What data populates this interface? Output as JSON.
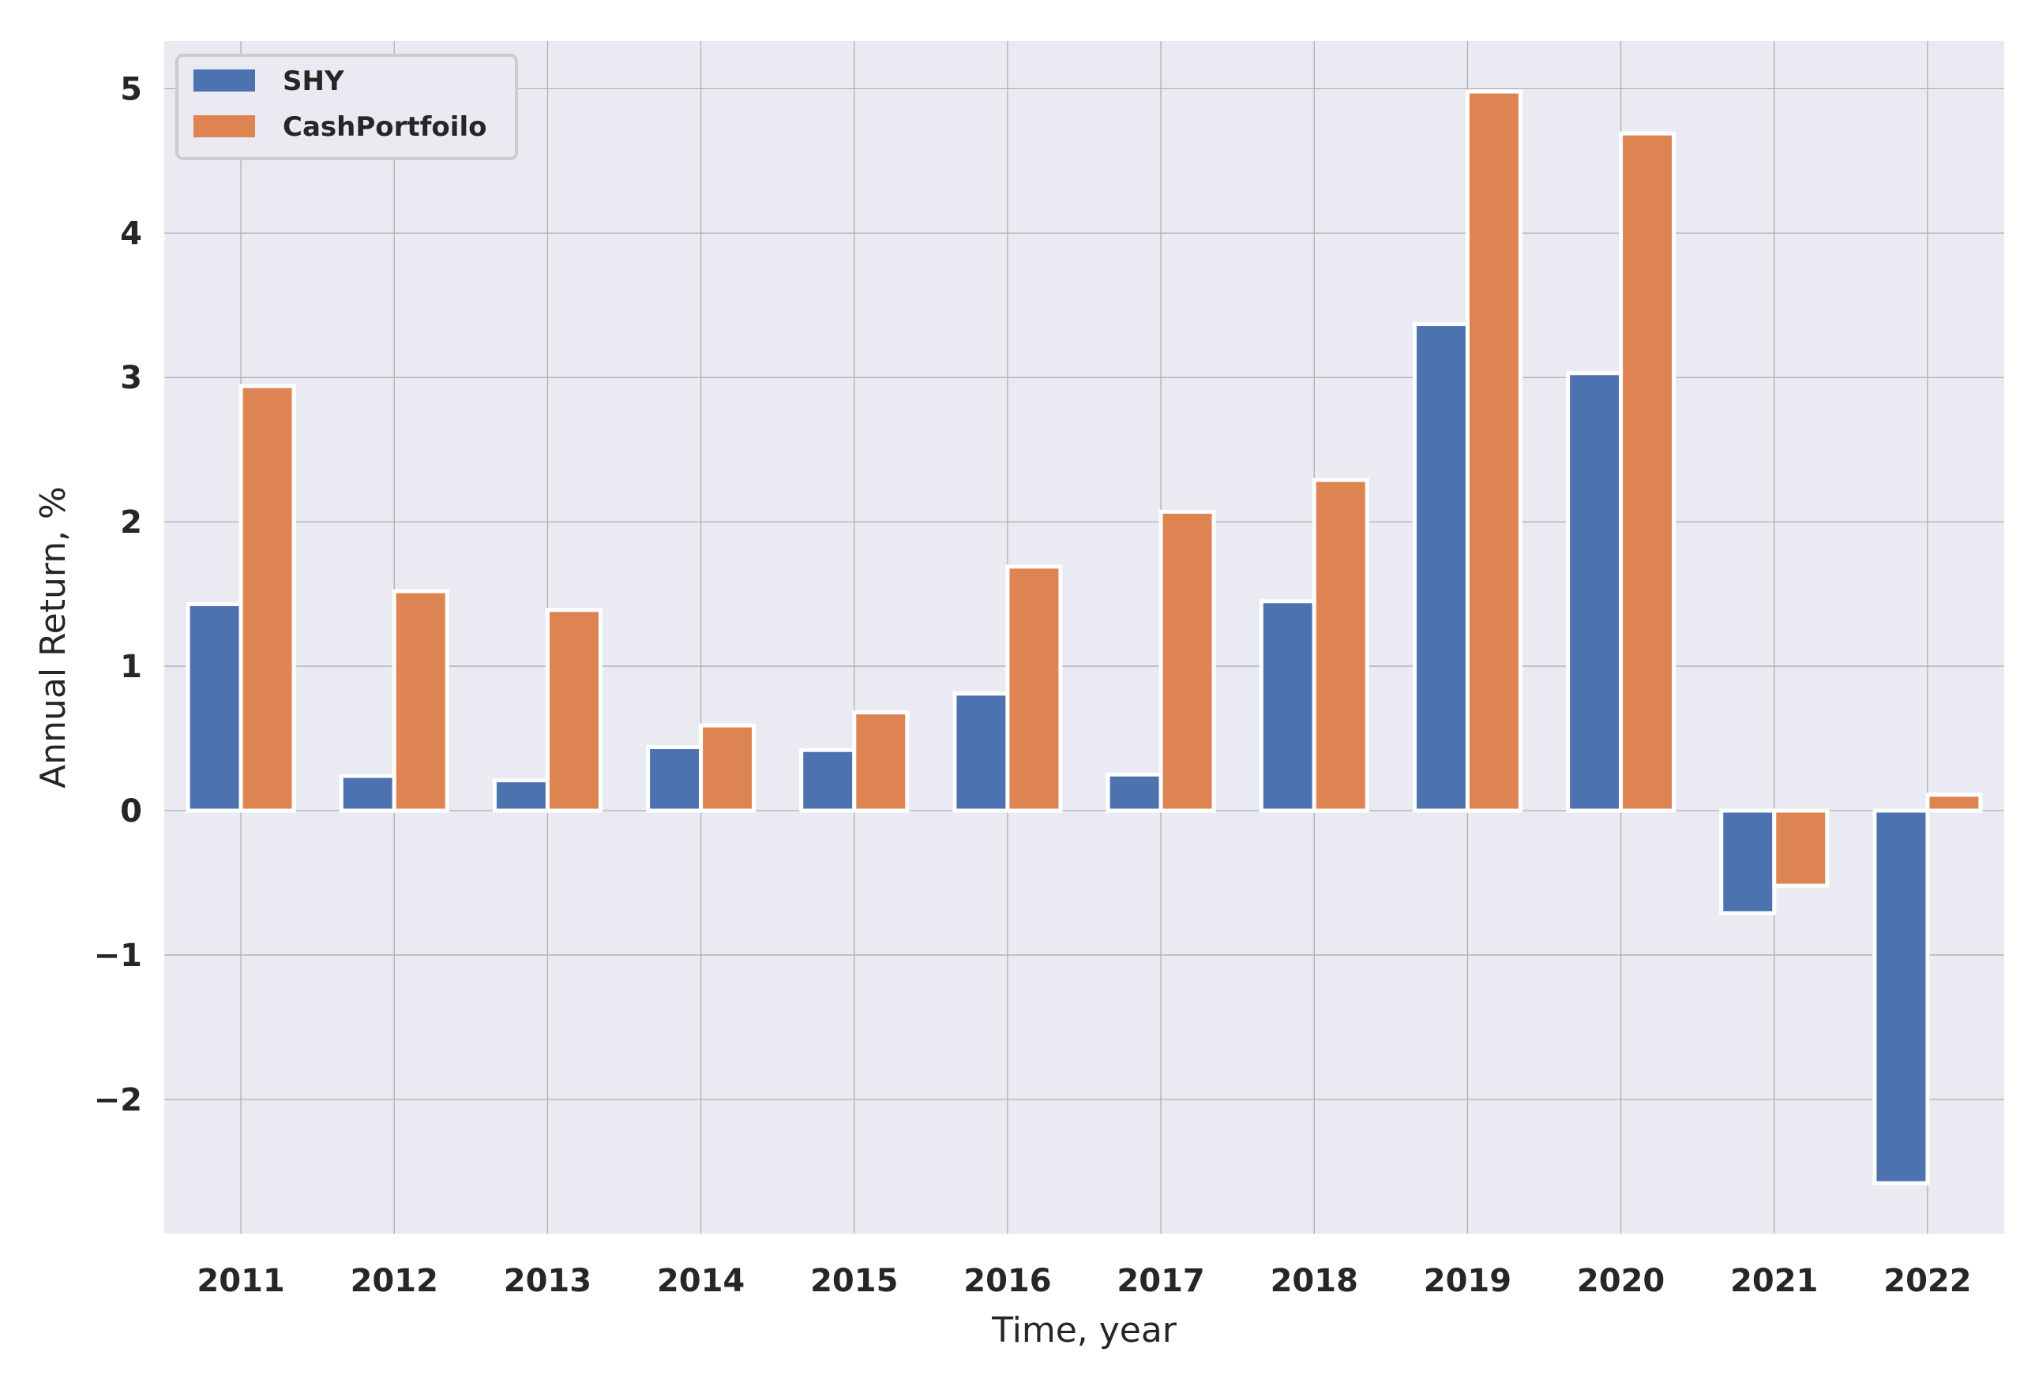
{
  "chart_data": {
    "type": "bar",
    "categories": [
      "2011",
      "2012",
      "2013",
      "2014",
      "2015",
      "2016",
      "2017",
      "2018",
      "2019",
      "2020",
      "2021",
      "2022"
    ],
    "series": [
      {
        "name": "SHY",
        "color": "#4c72b0",
        "values": [
          1.43,
          0.24,
          0.21,
          0.44,
          0.42,
          0.81,
          0.25,
          1.45,
          3.37,
          3.03,
          -0.71,
          -2.58
        ]
      },
      {
        "name": "CashPortfoilo",
        "color": "#dd8452",
        "values": [
          2.94,
          1.52,
          1.39,
          0.59,
          0.68,
          1.69,
          2.07,
          2.29,
          4.98,
          4.69,
          -0.52,
          0.11
        ]
      }
    ],
    "xlabel": "Time, year",
    "ylabel": "Annual Return, %",
    "ylim": [
      -2.93,
      5.33
    ],
    "yticks": [
      -2,
      -1,
      0,
      1,
      2,
      3,
      4,
      5
    ],
    "ytick_labels": [
      "−2",
      "−1",
      "0",
      "1",
      "2",
      "3",
      "4",
      "5"
    ],
    "grid": true,
    "legend_position": "upper-left",
    "background_color": "#eaeaf2",
    "grid_color": "#b0b0b0"
  }
}
